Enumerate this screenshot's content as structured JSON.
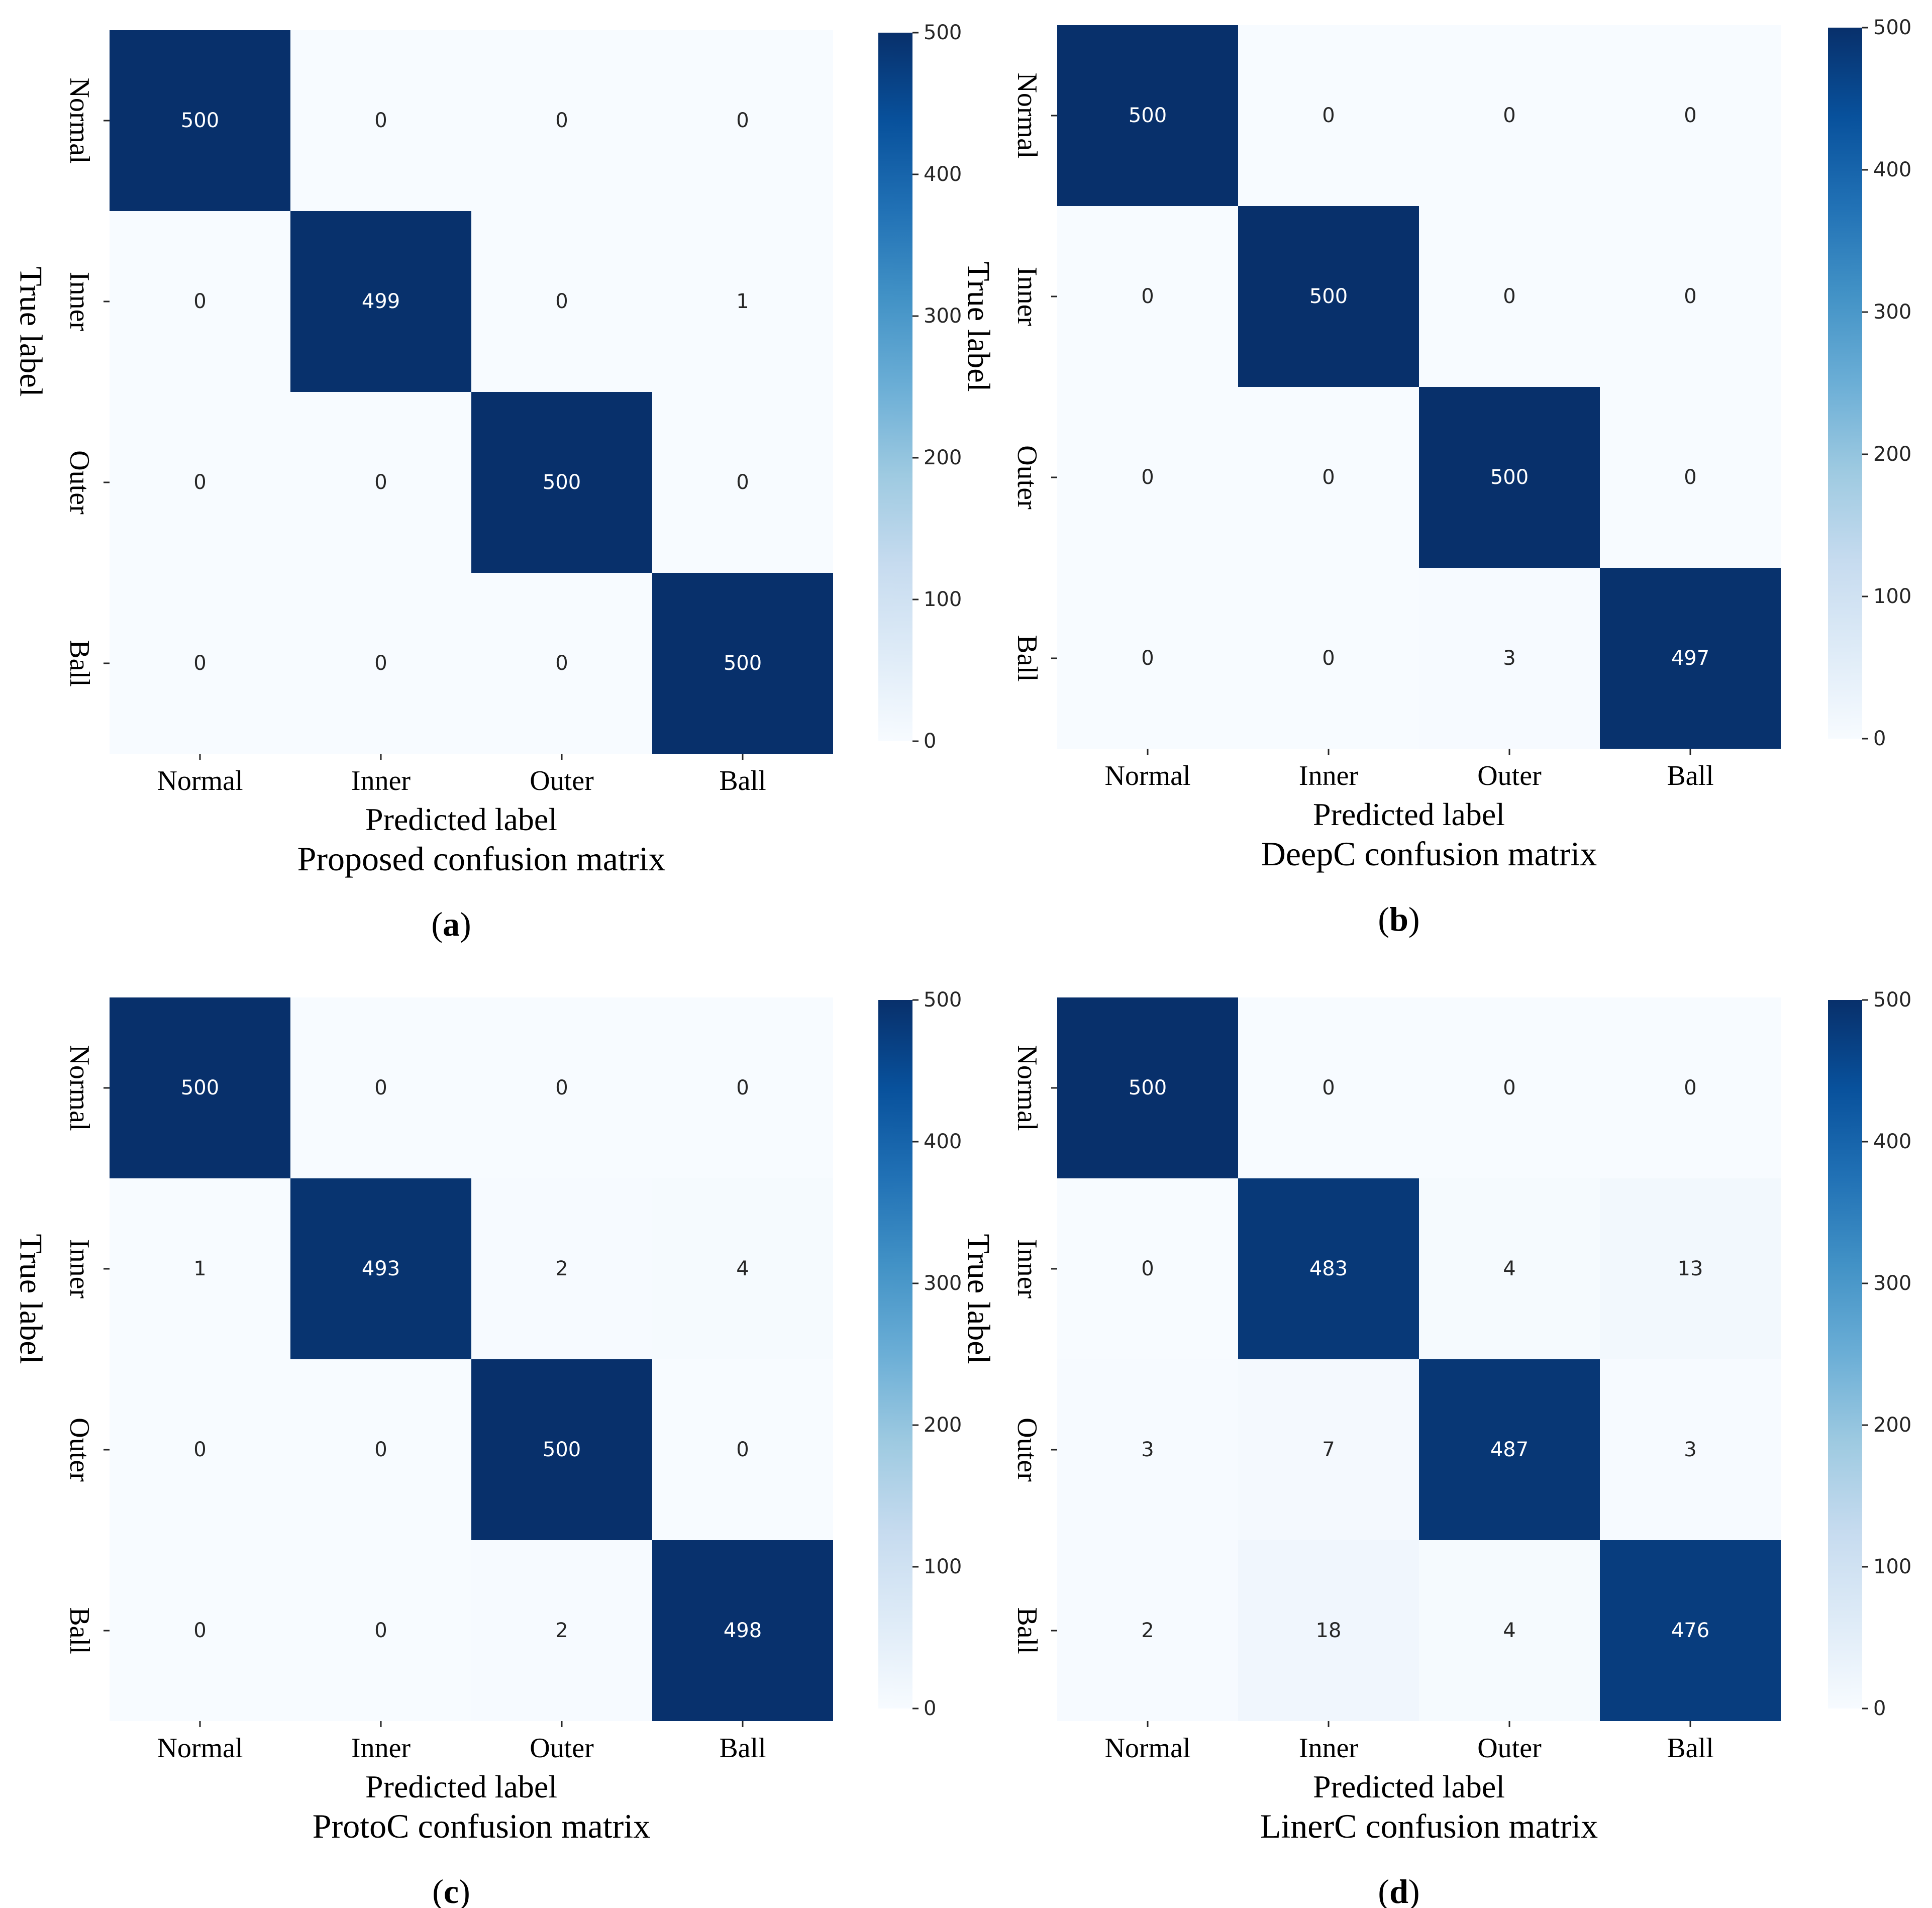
{
  "figure": {
    "colorbar_ticks": [
      "0",
      "100",
      "200",
      "300",
      "400",
      "500"
    ],
    "colormap": {
      "low": "#f7fbff",
      "mid": "#6baed6",
      "high": "#08306b",
      "light_text": "#ffffff",
      "dark_text": "#262626"
    }
  },
  "chart_data": [
    {
      "type": "heatmap",
      "panel_label": "a",
      "title": "Proposed confusion matrix",
      "xlabel": "Predicted label",
      "ylabel": "True label",
      "x_categories": [
        "Normal",
        "Inner",
        "Outer",
        "Ball"
      ],
      "y_categories": [
        "Normal",
        "Inner",
        "Outer",
        "Ball"
      ],
      "values": [
        [
          500,
          0,
          0,
          0
        ],
        [
          0,
          499,
          0,
          1
        ],
        [
          0,
          0,
          500,
          0
        ],
        [
          0,
          0,
          0,
          500
        ]
      ],
      "colorbar_range": [
        0,
        500
      ]
    },
    {
      "type": "heatmap",
      "panel_label": "b",
      "title": "DeepC confusion matrix",
      "xlabel": "Predicted label",
      "ylabel": "True label",
      "x_categories": [
        "Normal",
        "Inner",
        "Outer",
        "Ball"
      ],
      "y_categories": [
        "Normal",
        "Inner",
        "Outer",
        "Ball"
      ],
      "values": [
        [
          500,
          0,
          0,
          0
        ],
        [
          0,
          500,
          0,
          0
        ],
        [
          0,
          0,
          500,
          0
        ],
        [
          0,
          0,
          3,
          497
        ]
      ],
      "colorbar_range": [
        0,
        500
      ]
    },
    {
      "type": "heatmap",
      "panel_label": "c",
      "title": "ProtoC confusion matrix",
      "xlabel": "Predicted label",
      "ylabel": "True label",
      "x_categories": [
        "Normal",
        "Inner",
        "Outer",
        "Ball"
      ],
      "y_categories": [
        "Normal",
        "Inner",
        "Outer",
        "Ball"
      ],
      "values": [
        [
          500,
          0,
          0,
          0
        ],
        [
          1,
          493,
          2,
          4
        ],
        [
          0,
          0,
          500,
          0
        ],
        [
          0,
          0,
          2,
          498
        ]
      ],
      "colorbar_range": [
        0,
        500
      ]
    },
    {
      "type": "heatmap",
      "panel_label": "d",
      "title": "LinerC confusion matrix",
      "xlabel": "Predicted label",
      "ylabel": "True label",
      "x_categories": [
        "Normal",
        "Inner",
        "Outer",
        "Ball"
      ],
      "y_categories": [
        "Normal",
        "Inner",
        "Outer",
        "Ball"
      ],
      "values": [
        [
          500,
          0,
          0,
          0
        ],
        [
          0,
          483,
          4,
          13
        ],
        [
          3,
          7,
          487,
          3
        ],
        [
          2,
          18,
          4,
          476
        ]
      ],
      "colorbar_range": [
        0,
        500
      ]
    }
  ]
}
